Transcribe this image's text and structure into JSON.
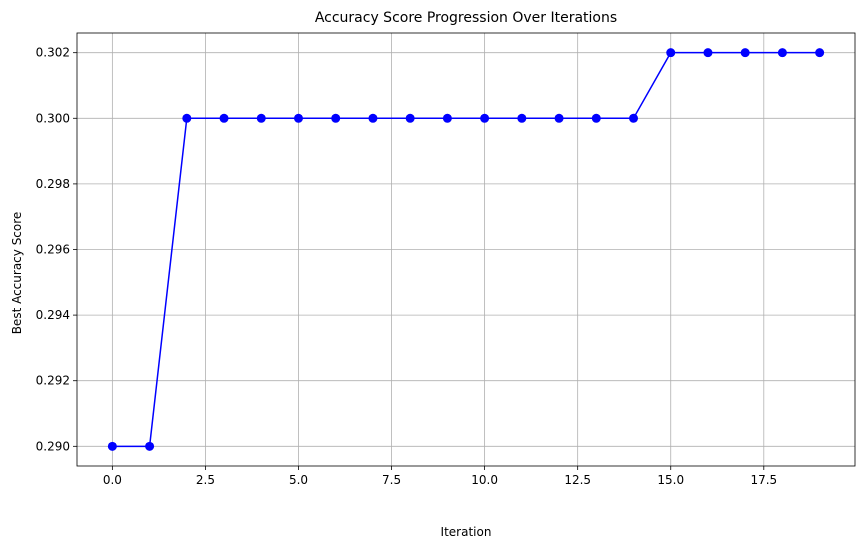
{
  "chart_data": {
    "type": "line",
    "title": "Accuracy Score Progression Over Iterations",
    "xlabel": "Iteration",
    "ylabel": "Best Accuracy Score",
    "xlim": [
      -0.95,
      19.95
    ],
    "ylim": [
      0.2894,
      0.3026
    ],
    "x_ticks": [
      0.0,
      2.5,
      5.0,
      7.5,
      10.0,
      12.5,
      15.0,
      17.5
    ],
    "x_tick_labels": [
      "0.0",
      "2.5",
      "5.0",
      "7.5",
      "10.0",
      "12.5",
      "15.0",
      "17.5"
    ],
    "y_ticks": [
      0.29,
      0.292,
      0.294,
      0.296,
      0.298,
      0.3,
      0.302
    ],
    "y_tick_labels": [
      "0.290",
      "0.292",
      "0.294",
      "0.296",
      "0.298",
      "0.300",
      "0.302"
    ],
    "grid": true,
    "series": [
      {
        "color": "#0000ff",
        "marker": "circle",
        "x": [
          0,
          1,
          2,
          3,
          4,
          5,
          6,
          7,
          8,
          9,
          10,
          11,
          12,
          13,
          14,
          15,
          16,
          17,
          18,
          19
        ],
        "values": [
          0.29,
          0.29,
          0.3,
          0.3,
          0.3,
          0.3,
          0.3,
          0.3,
          0.3,
          0.3,
          0.3,
          0.3,
          0.3,
          0.3,
          0.3,
          0.302,
          0.302,
          0.302,
          0.302,
          0.302
        ]
      }
    ]
  }
}
